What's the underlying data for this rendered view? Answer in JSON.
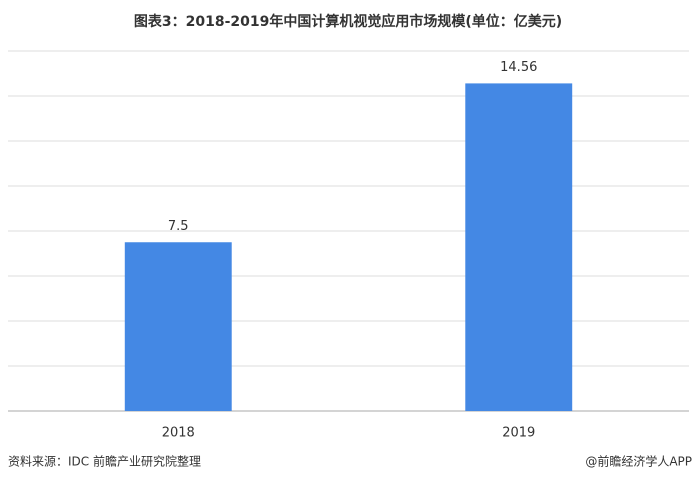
{
  "chart_data": {
    "type": "bar",
    "title": "图表3：2018-2019年中国计算机视觉应用市场规模(单位：亿美元)",
    "categories": [
      "2018",
      "2019"
    ],
    "values": [
      7.5,
      14.56
    ],
    "color": "#4488e4",
    "ylim": [
      0,
      16
    ],
    "yticks": [
      0,
      2,
      4,
      6,
      8,
      10,
      12,
      14,
      16
    ],
    "grid": true,
    "source": "资料来源：IDC 前瞻产业研究院整理",
    "credit": "@前瞻经济学人APP"
  }
}
